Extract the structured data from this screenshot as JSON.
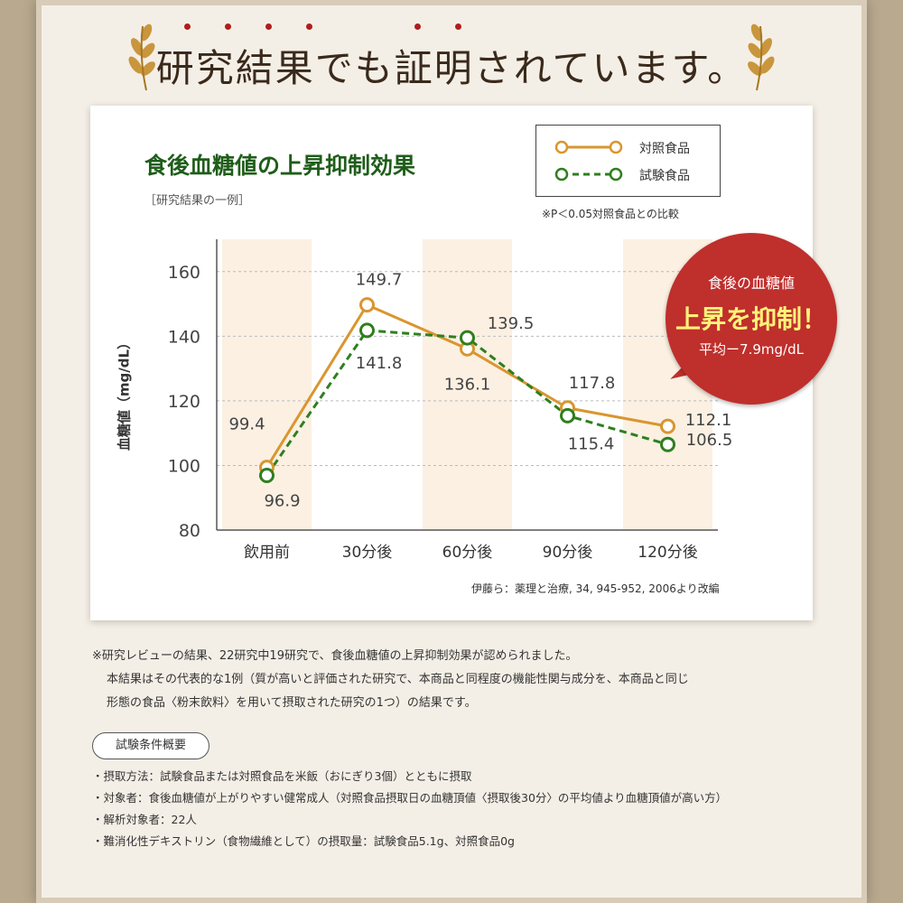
{
  "headline": "研究結果でも証明されています。",
  "chart_data": {
    "type": "line",
    "title": "食後血糖値の上昇抑制効果",
    "subtitle": "［研究結果の一例］",
    "categories": [
      "飲用前",
      "30分後",
      "60分後",
      "90分後",
      "120分後"
    ],
    "series": [
      {
        "name": "対照食品",
        "values": [
          99.4,
          149.7,
          136.1,
          117.8,
          112.1
        ],
        "color": "#d9962f",
        "style": "solid"
      },
      {
        "name": "試験食品",
        "values": [
          96.9,
          141.8,
          139.5,
          115.4,
          106.5
        ],
        "color": "#2f7f1f",
        "style": "dashed"
      }
    ],
    "data_labels": {
      "control": [
        "99.4",
        "149.7",
        "136.1",
        "117.8",
        "112.1"
      ],
      "test": [
        "96.9",
        "141.8",
        "139.5",
        "115.4",
        "106.5"
      ]
    },
    "ylabel": "血糖値（mg/dL）",
    "ylim": [
      80,
      170
    ],
    "yticks": [
      "80",
      "100",
      "120",
      "140",
      "160"
    ],
    "note": "※P＜0.05対照食品との比較",
    "source": "伊藤ら：薬理と治療, 34, 945-952, 2006より改編",
    "shaded_categories": [
      "飲用前",
      "60分後",
      "120分後"
    ]
  },
  "badge": {
    "line1": "食後の血糖値",
    "line2": "上昇を抑制！",
    "line3": "平均ー7.9mg/dL"
  },
  "notes": {
    "line1": "※研究レビューの結果、22研究中19研究で、食後血糖値の上昇抑制効果が認められました。",
    "line2": "本結果はその代表的な1例（質が高いと評価された研究で、本商品と同程度の機能性関与成分を、本商品と同じ",
    "line3": "形態の食品〈粉末飲料〉を用いて摂取された研究の1つ）の結果です。"
  },
  "conditions": {
    "title": "試験条件概要",
    "items": [
      "・摂取方法：試験食品または対照食品を米飯（おにぎり3個）とともに摂取",
      "・対象者：食後血糖値が上がりやすい健常成人（対照食品摂取日の血糖頂値〈摂取後30分〉の平均値より血糖頂値が高い方）",
      "・解析対象者：22人",
      "・難消化性デキストリン（食物繊維として）の摂取量：試験食品5.1g、対照食品0g"
    ]
  },
  "colors": {
    "accent_red": "#bf2f2c",
    "title_green": "#1f5d1a",
    "control": "#d9962f",
    "test": "#2f7f1f"
  }
}
